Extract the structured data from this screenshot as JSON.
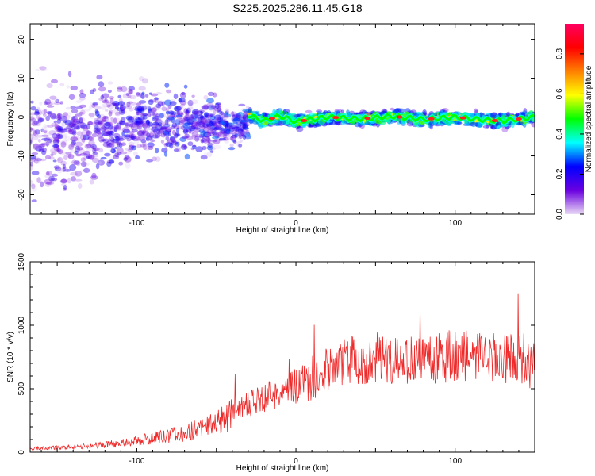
{
  "title": "S225.2025.286.11.45.G18",
  "chart_data": [
    {
      "type": "heatmap",
      "xlabel": "Height of straight line (km)",
      "ylabel": "Frequency (Hz)",
      "xlim": [
        -167,
        150
      ],
      "ylim": [
        -25,
        24
      ],
      "xticks": [
        "-100",
        "0",
        "100"
      ],
      "yticks": [
        "-20",
        "-10",
        "0",
        "10",
        "20"
      ],
      "colorbar": {
        "label": "Normalized spectral amplitude",
        "range": [
          0,
          0.95
        ],
        "ticks": [
          "0.0",
          "0.2",
          "0.4",
          "0.6",
          "0.8"
        ],
        "colors": [
          "#e8d9f4",
          "#6a00e0",
          "#0000ff",
          "#00ffff",
          "#00ff00",
          "#ffff00",
          "#ff8000",
          "#ff0000",
          "#ff0060"
        ]
      },
      "ridge": [
        {
          "x": -30,
          "y": 0.5
        },
        {
          "x": -20,
          "y": -1.0
        },
        {
          "x": -10,
          "y": 0.3
        },
        {
          "x": 0,
          "y": -1.2
        },
        {
          "x": 20,
          "y": 0.0
        },
        {
          "x": 40,
          "y": -0.5
        },
        {
          "x": 60,
          "y": 0.2
        },
        {
          "x": 80,
          "y": -0.6
        },
        {
          "x": 100,
          "y": 0.0
        },
        {
          "x": 120,
          "y": -0.8
        },
        {
          "x": 130,
          "y": -1.0
        },
        {
          "x": 150,
          "y": 0.0
        }
      ]
    },
    {
      "type": "line",
      "xlabel": "Height of straight line (km)",
      "ylabel": "SNR (10 * v/v)",
      "xlim": [
        -167,
        150
      ],
      "ylim": [
        0,
        1500
      ],
      "xticks": [
        "-100",
        "0",
        "100"
      ],
      "yticks": [
        "0",
        "500",
        "1000",
        "1500"
      ],
      "color": "#ee2a2a",
      "envelope": [
        {
          "x": -167,
          "y": 30
        },
        {
          "x": -140,
          "y": 40
        },
        {
          "x": -110,
          "y": 70
        },
        {
          "x": -90,
          "y": 110
        },
        {
          "x": -70,
          "y": 150
        },
        {
          "x": -50,
          "y": 230
        },
        {
          "x": -40,
          "y": 300
        },
        {
          "x": -30,
          "y": 380
        },
        {
          "x": -20,
          "y": 430
        },
        {
          "x": -10,
          "y": 470
        },
        {
          "x": 0,
          "y": 520
        },
        {
          "x": 10,
          "y": 560
        },
        {
          "x": 20,
          "y": 650
        },
        {
          "x": 30,
          "y": 710
        },
        {
          "x": 40,
          "y": 740
        },
        {
          "x": 60,
          "y": 740
        },
        {
          "x": 80,
          "y": 730
        },
        {
          "x": 100,
          "y": 760
        },
        {
          "x": 120,
          "y": 740
        },
        {
          "x": 140,
          "y": 740
        },
        {
          "x": 150,
          "y": 730
        }
      ]
    }
  ]
}
